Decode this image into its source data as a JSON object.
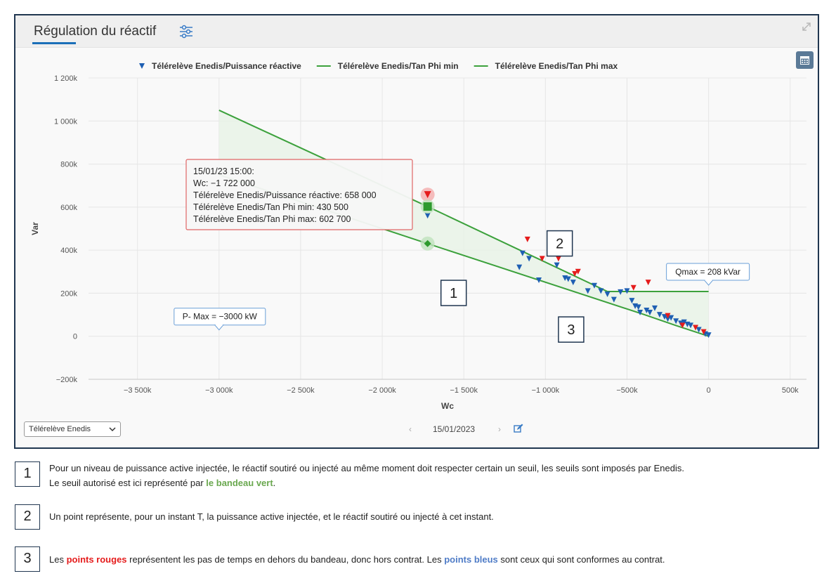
{
  "panel": {
    "title": "Régulation du réactif",
    "icons": {
      "settings": "sliders-icon",
      "expand": "expand-icon",
      "calendar": "calendar-icon"
    }
  },
  "chart_data": {
    "type": "scatter",
    "xlabel": "Wc",
    "ylabel": "Var",
    "xlim": [
      -3800000,
      600000
    ],
    "ylim": [
      -200000,
      1200000
    ],
    "x_ticks": [
      -3500000,
      -3000000,
      -2500000,
      -2000000,
      -1500000,
      -1000000,
      -500000,
      0,
      500000
    ],
    "x_tick_labels": [
      "−3 500k",
      "−3 000k",
      "−2 500k",
      "−2 000k",
      "−1 500k",
      "−1 000k",
      "−500k",
      "0",
      "500k"
    ],
    "y_ticks": [
      -200000,
      0,
      200000,
      400000,
      600000,
      800000,
      1000000,
      1200000
    ],
    "y_tick_labels": [
      "−200k",
      "0",
      "200k",
      "400k",
      "600k",
      "800k",
      "1 000k",
      "1 200k"
    ],
    "grid": true,
    "legend_position": "top",
    "series": [
      {
        "name": "Télérelève Enedis/Puissance réactive",
        "kind": "scatter",
        "marker": "triangle-down",
        "color": "#1e5fb3"
      },
      {
        "name": "Télérelève Enedis/Tan Phi min",
        "kind": "line",
        "color": "#3ca13c",
        "x": [
          -3000000,
          -1722000,
          -400000,
          -200000,
          0
        ],
        "y": [
          750000,
          430500,
          102000,
          50000,
          0
        ]
      },
      {
        "name": "Télérelève Enedis/Tan Phi max",
        "kind": "line",
        "color": "#3ca13c",
        "x": [
          -3000000,
          -1722000,
          -620000,
          0
        ],
        "y": [
          1050000,
          602700,
          208000,
          208000
        ]
      }
    ],
    "points_blue": [
      [
        -1722000,
        560000
      ],
      [
        -1160000,
        320000
      ],
      [
        -1140000,
        385000
      ],
      [
        -1100000,
        360000
      ],
      [
        -1040000,
        260000
      ],
      [
        -930000,
        330000
      ],
      [
        -880000,
        270000
      ],
      [
        -860000,
        265000
      ],
      [
        -830000,
        250000
      ],
      [
        -740000,
        210000
      ],
      [
        -700000,
        235000
      ],
      [
        -660000,
        210000
      ],
      [
        -620000,
        195000
      ],
      [
        -580000,
        170000
      ],
      [
        -540000,
        205000
      ],
      [
        -500000,
        210000
      ],
      [
        -470000,
        165000
      ],
      [
        -450000,
        140000
      ],
      [
        -430000,
        135000
      ],
      [
        -420000,
        110000
      ],
      [
        -380000,
        120000
      ],
      [
        -360000,
        110000
      ],
      [
        -330000,
        130000
      ],
      [
        -300000,
        100000
      ],
      [
        -270000,
        90000
      ],
      [
        -250000,
        80000
      ],
      [
        -230000,
        85000
      ],
      [
        -200000,
        70000
      ],
      [
        -170000,
        60000
      ],
      [
        -150000,
        65000
      ],
      [
        -130000,
        55000
      ],
      [
        -110000,
        50000
      ],
      [
        -60000,
        30000
      ],
      [
        -20000,
        10000
      ],
      [
        0,
        5000
      ]
    ],
    "points_red": [
      [
        -1722000,
        658000
      ],
      [
        -1110000,
        450000
      ],
      [
        -1020000,
        360000
      ],
      [
        -920000,
        360000
      ],
      [
        -820000,
        290000
      ],
      [
        -800000,
        300000
      ],
      [
        -460000,
        225000
      ],
      [
        -370000,
        250000
      ],
      [
        -250000,
        95000
      ],
      [
        -160000,
        50000
      ],
      [
        -80000,
        40000
      ],
      [
        -30000,
        20000
      ]
    ],
    "tooltip": {
      "date": "15/01/23 15:00:",
      "wc": "Wc: −1 722 000",
      "reactive": "Télérelève Enedis/Puissance réactive: 658 000",
      "tanphi_min": "Télérelève Enedis/Tan Phi min: 430 500",
      "tanphi_max": "Télérelève Enedis/Tan Phi max: 602 700",
      "hover_x": -1722000,
      "hover_reactive": 658000,
      "hover_min": 430500,
      "hover_max": 602700
    },
    "annotations": {
      "pmax": {
        "text": "P- Max = −3000 kW",
        "x": -3000000,
        "y": 0
      },
      "qmax": {
        "text": "Qmax = 208 kVar",
        "x": 0,
        "y": 208000
      }
    }
  },
  "callouts": [
    {
      "label": "1",
      "x": -1640000,
      "y": 260000
    },
    {
      "label": "2",
      "x": -990000,
      "y": 490000
    },
    {
      "label": "3",
      "x": -920000,
      "y": 90000
    }
  ],
  "controls": {
    "source_select": "Télérelève Enedis",
    "date": "15/01/2023",
    "prev": "‹",
    "next": "›"
  },
  "notes": [
    {
      "number": "1",
      "line1": "Pour un niveau de puissance active injectée, le réactif soutiré ou injecté au même moment doit respecter certain un seuil, les seuils sont imposés par Enedis.",
      "line2_pre": "Le seuil autorisé est ici représenté par ",
      "line2_highlight": "le bandeau vert",
      "line2_post": "."
    },
    {
      "number": "2",
      "text": "Un point représente, pour un instant T, la puissance active injectée, et le réactif soutiré ou injecté à cet instant."
    },
    {
      "number": "3",
      "pre": "Les ",
      "red": "points rouges",
      "mid": " représentent les pas de temps en dehors du bandeau, donc hors contrat. Les ",
      "blue": "points bleus",
      "post": " sont ceux qui sont conformes au contrat."
    }
  ]
}
